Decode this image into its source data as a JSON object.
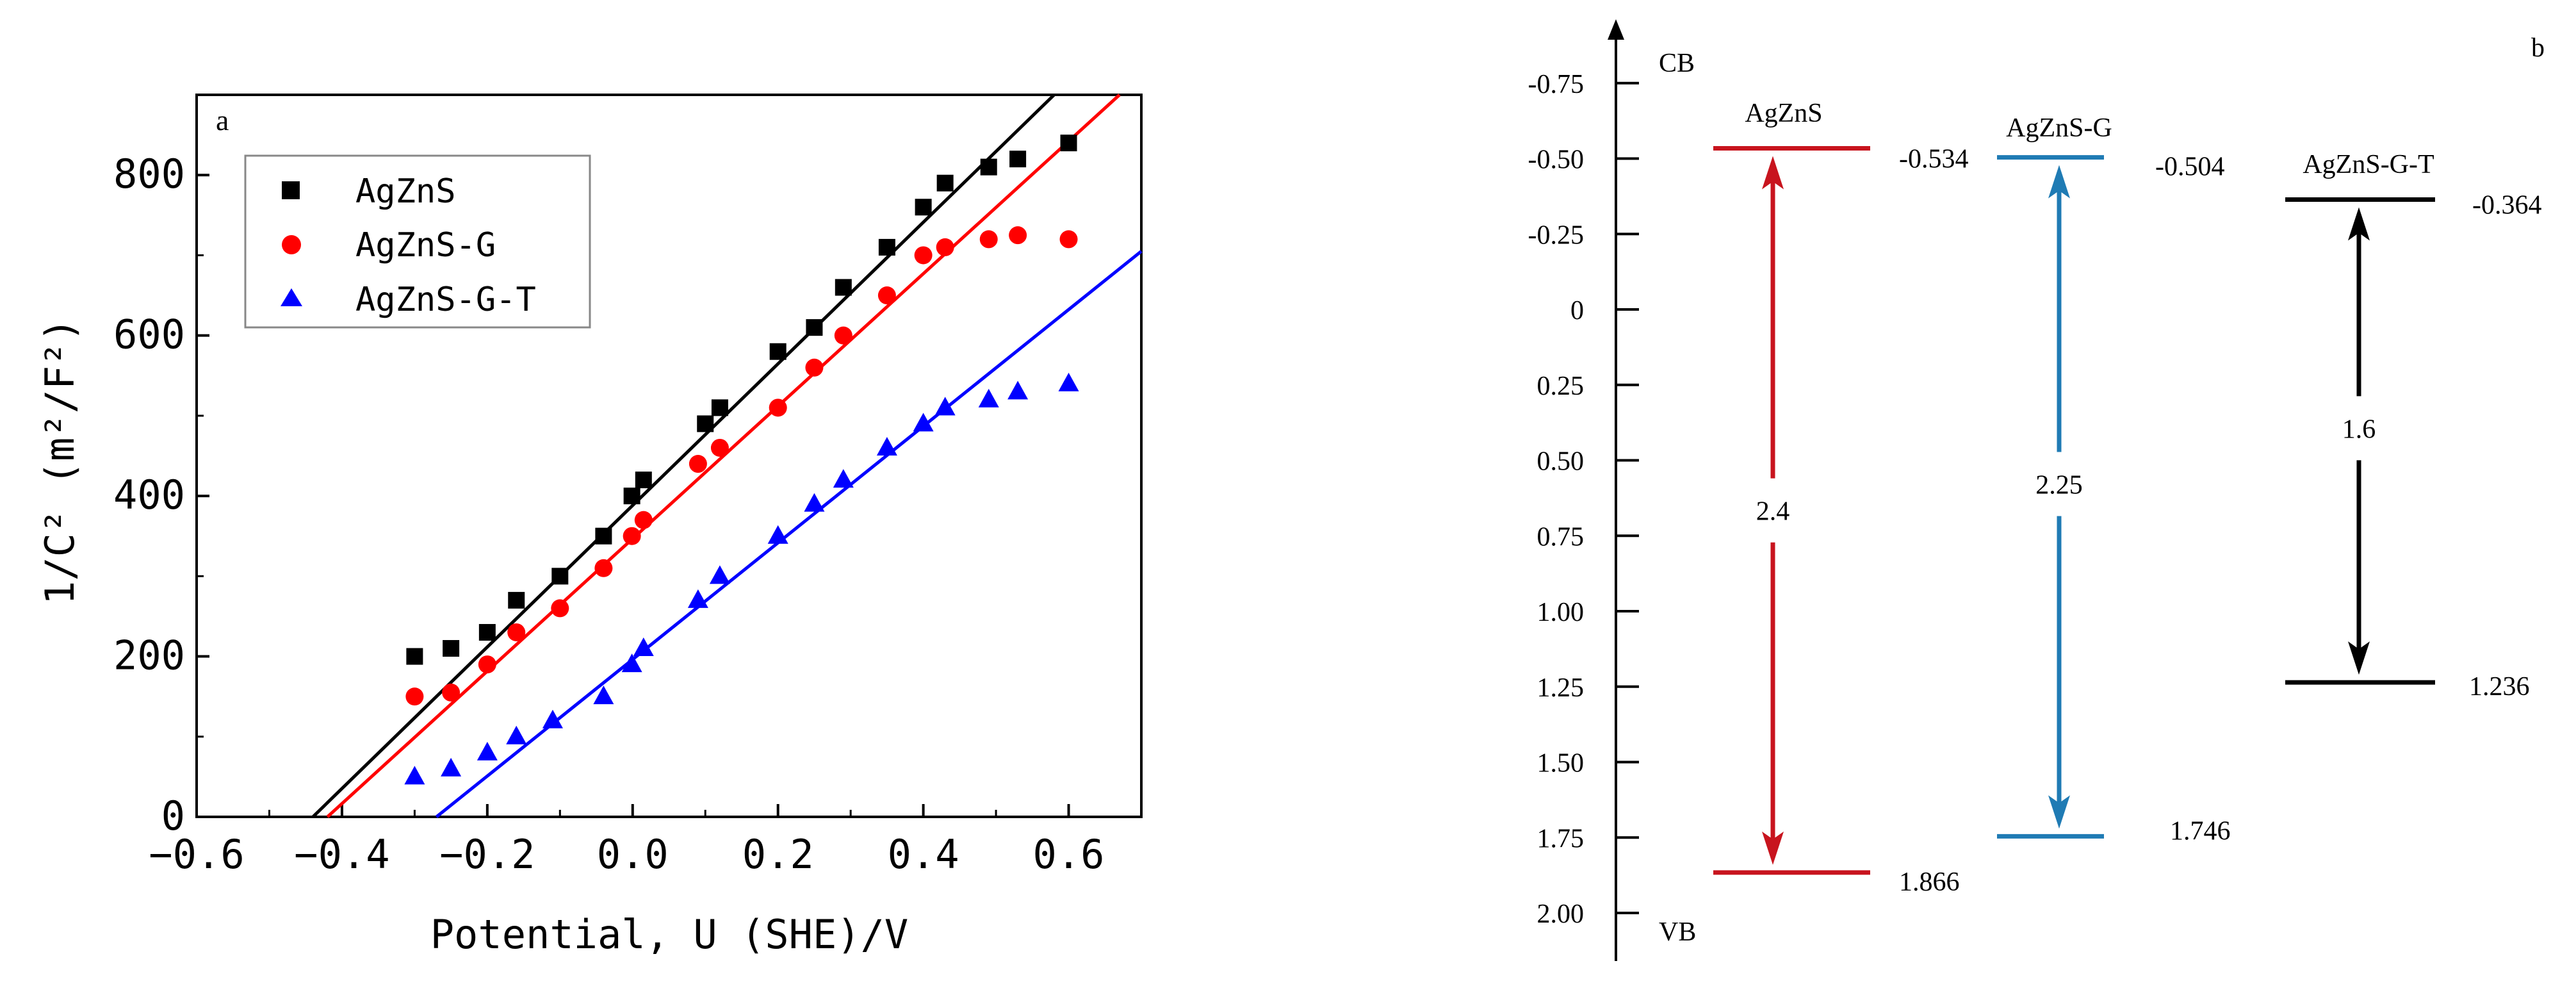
{
  "chart_data": [
    {
      "type": "scatter",
      "panel_label": "a",
      "xlabel": "Potential, U (SHE)/V",
      "ylabel": "1/C² (m²/F²)",
      "xlim": [
        -0.6,
        0.7
      ],
      "ylim": [
        0,
        900
      ],
      "xticks": [
        -0.6,
        -0.4,
        -0.2,
        0.0,
        0.2,
        0.4,
        0.6
      ],
      "xtick_labels": [
        "−0.6",
        "−0.4",
        "−0.2",
        "0.0",
        "0.2",
        "0.4",
        "0.6"
      ],
      "yticks": [
        0,
        200,
        400,
        600,
        800
      ],
      "ytick_labels": [
        "0",
        "200",
        "400",
        "600",
        "800"
      ],
      "legend_position": "top-left",
      "series": [
        {
          "name": "AgZnS",
          "color": "#000000",
          "marker": "square",
          "x": [
            -0.3,
            -0.25,
            -0.2,
            -0.16,
            -0.1,
            -0.04,
            -0.001,
            0.015,
            0.1,
            0.12,
            0.2,
            0.25,
            0.29,
            0.35,
            0.4,
            0.43,
            0.49,
            0.53,
            0.6
          ],
          "y": [
            200,
            210,
            230,
            270,
            300,
            350,
            400,
            420,
            490,
            510,
            580,
            610,
            660,
            710,
            760,
            790,
            810,
            820,
            840
          ],
          "fit": {
            "x": [
              -0.44,
              0.58
            ],
            "y": [
              0,
              900
            ]
          }
        },
        {
          "name": "AgZnS-G",
          "color": "#ff0000",
          "marker": "circle",
          "x": [
            -0.3,
            -0.25,
            -0.2,
            -0.16,
            -0.1,
            -0.04,
            -0.001,
            0.015,
            0.09,
            0.12,
            0.2,
            0.25,
            0.29,
            0.35,
            0.4,
            0.43,
            0.49,
            0.53,
            0.6
          ],
          "y": [
            150,
            155,
            190,
            230,
            260,
            310,
            350,
            370,
            440,
            460,
            510,
            560,
            600,
            650,
            700,
            710,
            720,
            725,
            720
          ],
          "fit": {
            "x": [
              -0.42,
              0.67
            ],
            "y": [
              0,
              900
            ]
          }
        },
        {
          "name": "AgZnS-G-T",
          "color": "#0000ff",
          "marker": "triangle",
          "x": [
            -0.3,
            -0.25,
            -0.2,
            -0.16,
            -0.11,
            -0.04,
            -0.001,
            0.015,
            0.09,
            0.12,
            0.2,
            0.25,
            0.29,
            0.35,
            0.4,
            0.43,
            0.49,
            0.53,
            0.6
          ],
          "y": [
            50,
            60,
            80,
            100,
            120,
            150,
            190,
            210,
            270,
            300,
            350,
            390,
            420,
            460,
            490,
            510,
            520,
            530,
            540
          ],
          "fit": {
            "x": [
              -0.27,
              0.7
            ],
            "y": [
              0,
              705
            ]
          }
        }
      ]
    },
    {
      "type": "band_diagram",
      "panel_label": "b",
      "top_label": "CB",
      "bottom_label": "VB",
      "ylim": [
        -1.0,
        2.1
      ],
      "yticks": [
        -0.75,
        -0.5,
        -0.25,
        0,
        0.25,
        0.5,
        0.75,
        1.0,
        1.25,
        1.5,
        1.75,
        2.0
      ],
      "ytick_labels": [
        "-0.75",
        "-0.50",
        "-0.25",
        "0",
        "0.25",
        "0.50",
        "0.75",
        "1.00",
        "1.25",
        "1.50",
        "1.75",
        "2.00"
      ],
      "materials": [
        {
          "name": "AgZnS",
          "cb": -0.534,
          "vb": 1.866,
          "cb_label": "-0.534",
          "vb_label": "1.866",
          "gap_label": "2.4",
          "color": "#c8141e"
        },
        {
          "name": "AgZnS-G",
          "cb": -0.504,
          "vb": 1.746,
          "cb_label": "-0.504",
          "vb_label": "1.746",
          "gap_label": "2.25",
          "color": "#1f7bb4"
        },
        {
          "name": "AgZnS-G-T",
          "cb": -0.364,
          "vb": 1.236,
          "cb_label": "-0.364",
          "vb_label": "1.236",
          "gap_label": "1.6",
          "color": "#000000"
        }
      ]
    }
  ]
}
